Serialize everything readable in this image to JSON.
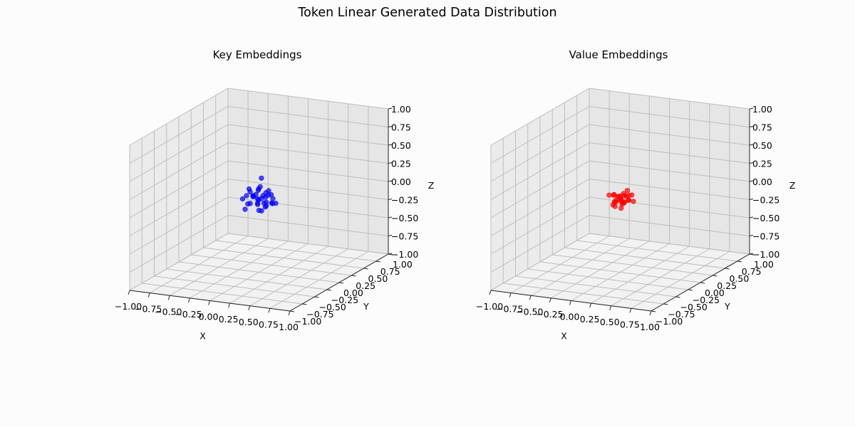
{
  "figure": {
    "title": "Token Linear Generated Data Distribution"
  },
  "chart_data": [
    {
      "type": "scatter3d",
      "title": "Key Embeddings",
      "xlabel": "X",
      "ylabel": "Y",
      "zlabel": "Z",
      "xlim": [
        -1,
        1
      ],
      "ylim": [
        -1,
        1
      ],
      "zlim": [
        -1,
        1
      ],
      "ticks": [
        "−1.00",
        "−0.75",
        "−0.50",
        "−0.25",
        "0.00",
        "0.25",
        "0.50",
        "0.75",
        "1.00"
      ],
      "grid": true,
      "color": "#0000ff",
      "points": [
        [
          -0.02,
          -0.03,
          0.08
        ],
        [
          0.05,
          0.02,
          -0.05
        ],
        [
          -0.1,
          0.04,
          0.02
        ],
        [
          0.12,
          -0.05,
          0.0
        ],
        [
          0.03,
          0.1,
          -0.12
        ],
        [
          -0.06,
          -0.08,
          -0.03
        ],
        [
          0.08,
          0.06,
          0.05
        ],
        [
          -0.14,
          0.0,
          -0.08
        ],
        [
          0.0,
          -0.12,
          0.1
        ],
        [
          0.1,
          0.12,
          -0.02
        ],
        [
          -0.04,
          0.06,
          0.12
        ],
        [
          0.06,
          -0.1,
          -0.1
        ],
        [
          -0.12,
          -0.06,
          0.06
        ],
        [
          0.14,
          0.02,
          0.08
        ],
        [
          0.02,
          0.02,
          -0.16
        ],
        [
          -0.08,
          0.12,
          -0.06
        ],
        [
          0.04,
          -0.04,
          0.2
        ],
        [
          -0.02,
          0.08,
          -0.02
        ],
        [
          0.09,
          -0.02,
          -0.08
        ],
        [
          -0.06,
          -0.02,
          0.04
        ],
        [
          0.16,
          0.08,
          -0.06
        ],
        [
          -0.16,
          0.06,
          0.1
        ],
        [
          0.0,
          0.14,
          0.04
        ],
        [
          0.07,
          -0.14,
          0.02
        ],
        [
          -0.1,
          -0.12,
          -0.1
        ],
        [
          0.12,
          0.0,
          0.14
        ],
        [
          0.02,
          -0.06,
          -0.04
        ],
        [
          -0.03,
          0.02,
          0.0
        ],
        [
          0.05,
          0.05,
          0.02
        ],
        [
          -0.07,
          0.1,
          0.08
        ],
        [
          0.1,
          -0.08,
          0.1
        ],
        [
          -0.05,
          -0.1,
          0.14
        ],
        [
          0.03,
          0.0,
          0.3
        ],
        [
          -0.18,
          -0.04,
          0.0
        ],
        [
          0.18,
          -0.02,
          -0.02
        ],
        [
          0.06,
          0.16,
          -0.1
        ]
      ]
    },
    {
      "type": "scatter3d",
      "title": "Value Embeddings",
      "xlabel": "X",
      "ylabel": "Y",
      "zlabel": "Z",
      "xlim": [
        -1,
        1
      ],
      "ylim": [
        -1,
        1
      ],
      "zlim": [
        -1,
        1
      ],
      "ticks": [
        "−1.00",
        "−0.75",
        "−0.50",
        "−0.25",
        "0.00",
        "0.25",
        "0.50",
        "0.75",
        "1.00"
      ],
      "grid": true,
      "color": "#ff0000",
      "points": [
        [
          0.0,
          0.0,
          0.05
        ],
        [
          0.04,
          -0.02,
          -0.03
        ],
        [
          -0.05,
          0.03,
          0.02
        ],
        [
          0.06,
          0.03,
          0.04
        ],
        [
          -0.03,
          -0.04,
          -0.02
        ],
        [
          0.02,
          0.05,
          -0.06
        ],
        [
          -0.07,
          -0.02,
          0.06
        ],
        [
          0.08,
          -0.05,
          0.0
        ],
        [
          0.01,
          0.07,
          0.03
        ],
        [
          -0.04,
          0.06,
          -0.04
        ],
        [
          0.05,
          -0.07,
          0.05
        ],
        [
          -0.08,
          0.01,
          -0.05
        ],
        [
          0.03,
          0.02,
          0.08
        ],
        [
          -0.02,
          -0.06,
          0.01
        ],
        [
          0.07,
          0.06,
          -0.02
        ],
        [
          -0.06,
          -0.05,
          -0.06
        ],
        [
          0.0,
          0.04,
          -0.08
        ],
        [
          0.1,
          0.01,
          0.07
        ],
        [
          -0.1,
          0.04,
          0.04
        ],
        [
          0.04,
          0.08,
          0.1
        ],
        [
          0.12,
          -0.03,
          0.02
        ],
        [
          -0.01,
          -0.09,
          -0.06
        ],
        [
          0.02,
          -0.01,
          0.0
        ],
        [
          -0.03,
          0.02,
          0.03
        ],
        [
          0.09,
          0.09,
          0.04
        ],
        [
          0.06,
          -0.08,
          -0.08
        ],
        [
          -0.09,
          -0.08,
          0.08
        ],
        [
          0.14,
          0.04,
          -0.02
        ]
      ]
    }
  ]
}
